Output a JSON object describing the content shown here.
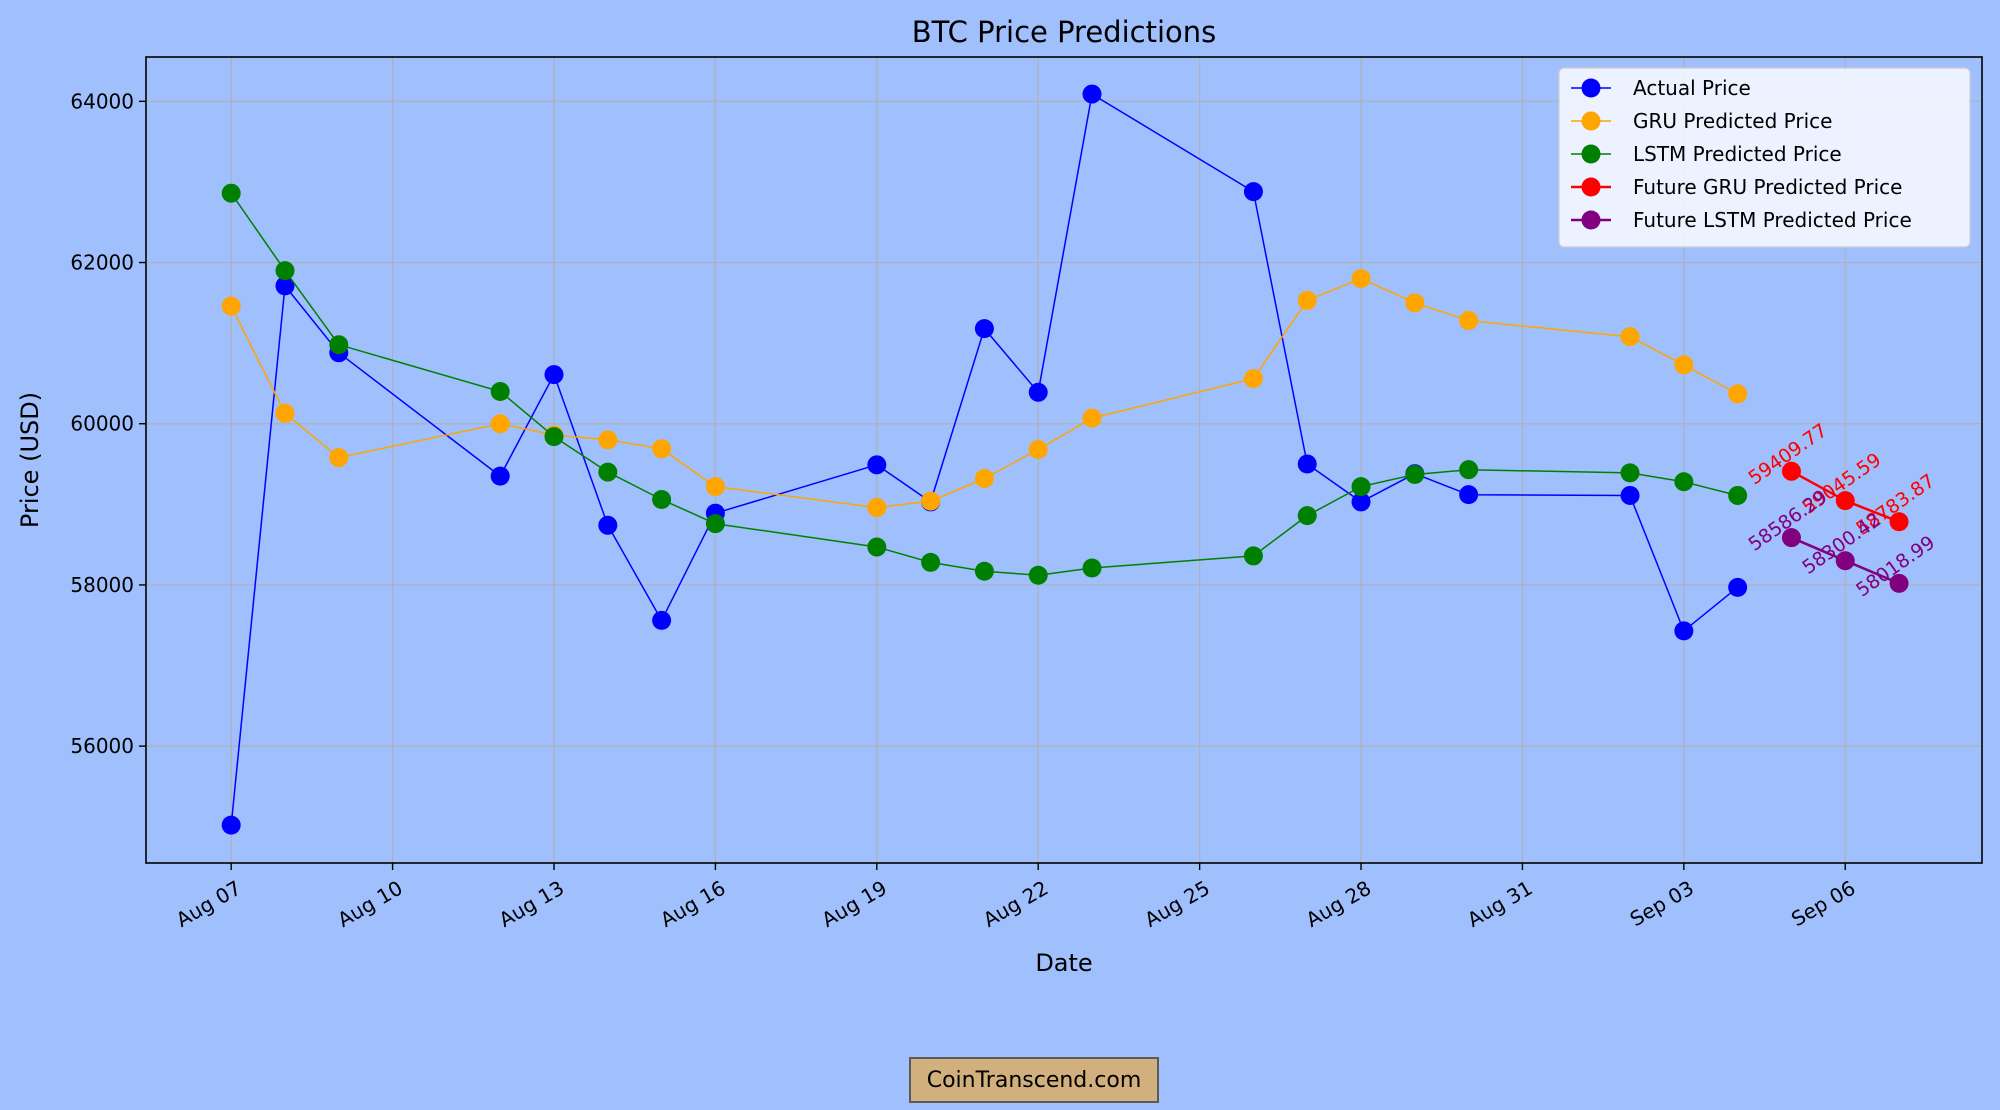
{
  "chart_data": {
    "type": "line",
    "title": "BTC Price Predictions",
    "xlabel": "Date",
    "ylabel": "Price (USD)",
    "x_axis_type": "date",
    "xlim": [
      "2024-08-05T10:00",
      "2024-09-08T13:00"
    ],
    "ylim": [
      54550,
      64550
    ],
    "x_ticks": [
      {
        "date": "2024-08-07",
        "label": "Aug 07"
      },
      {
        "date": "2024-08-10",
        "label": "Aug 10"
      },
      {
        "date": "2024-08-13",
        "label": "Aug 13"
      },
      {
        "date": "2024-08-16",
        "label": "Aug 16"
      },
      {
        "date": "2024-08-19",
        "label": "Aug 19"
      },
      {
        "date": "2024-08-22",
        "label": "Aug 22"
      },
      {
        "date": "2024-08-25",
        "label": "Aug 25"
      },
      {
        "date": "2024-08-28",
        "label": "Aug 28"
      },
      {
        "date": "2024-08-31",
        "label": "Aug 31"
      },
      {
        "date": "2024-09-03",
        "label": "Sep 03"
      },
      {
        "date": "2024-09-06",
        "label": "Sep 06"
      }
    ],
    "y_ticks": [
      56000,
      58000,
      60000,
      62000,
      64000
    ],
    "grid": true,
    "legend_position": "top-right",
    "series": [
      {
        "name": "Actual Price",
        "color": "#0000ff",
        "line_width": 1.5,
        "points": [
          {
            "x": "2024-08-07",
            "y": 55020
          },
          {
            "x": "2024-08-08",
            "y": 61710
          },
          {
            "x": "2024-08-09",
            "y": 60880
          },
          {
            "x": "2024-08-12",
            "y": 59350
          },
          {
            "x": "2024-08-13",
            "y": 60610
          },
          {
            "x": "2024-08-14",
            "y": 58740
          },
          {
            "x": "2024-08-15",
            "y": 57560
          },
          {
            "x": "2024-08-16",
            "y": 58890
          },
          {
            "x": "2024-08-19",
            "y": 59490
          },
          {
            "x": "2024-08-20",
            "y": 59030
          },
          {
            "x": "2024-08-21",
            "y": 61180
          },
          {
            "x": "2024-08-22",
            "y": 60390
          },
          {
            "x": "2024-08-23",
            "y": 64090
          },
          {
            "x": "2024-08-26",
            "y": 62880
          },
          {
            "x": "2024-08-27",
            "y": 59500
          },
          {
            "x": "2024-08-28",
            "y": 59030
          },
          {
            "x": "2024-08-29",
            "y": 59380
          },
          {
            "x": "2024-08-30",
            "y": 59120
          },
          {
            "x": "2024-09-02",
            "y": 59110
          },
          {
            "x": "2024-09-03",
            "y": 57430
          },
          {
            "x": "2024-09-04",
            "y": 57970
          }
        ]
      },
      {
        "name": "GRU Predicted Price",
        "color": "#ffa500",
        "line_width": 1.5,
        "points": [
          {
            "x": "2024-08-07",
            "y": 61460
          },
          {
            "x": "2024-08-08",
            "y": 60130
          },
          {
            "x": "2024-08-09",
            "y": 59580
          },
          {
            "x": "2024-08-12",
            "y": 60000
          },
          {
            "x": "2024-08-13",
            "y": 59860
          },
          {
            "x": "2024-08-14",
            "y": 59800
          },
          {
            "x": "2024-08-15",
            "y": 59690
          },
          {
            "x": "2024-08-16",
            "y": 59220
          },
          {
            "x": "2024-08-19",
            "y": 58960
          },
          {
            "x": "2024-08-20",
            "y": 59040
          },
          {
            "x": "2024-08-21",
            "y": 59320
          },
          {
            "x": "2024-08-22",
            "y": 59680
          },
          {
            "x": "2024-08-23",
            "y": 60070
          },
          {
            "x": "2024-08-26",
            "y": 60560
          },
          {
            "x": "2024-08-27",
            "y": 61530
          },
          {
            "x": "2024-08-28",
            "y": 61800
          },
          {
            "x": "2024-08-29",
            "y": 61500
          },
          {
            "x": "2024-08-30",
            "y": 61280
          },
          {
            "x": "2024-09-02",
            "y": 61080
          },
          {
            "x": "2024-09-03",
            "y": 60730
          },
          {
            "x": "2024-09-04",
            "y": 60370
          }
        ]
      },
      {
        "name": "LSTM Predicted Price",
        "color": "#008000",
        "line_width": 1.5,
        "points": [
          {
            "x": "2024-08-07",
            "y": 62860
          },
          {
            "x": "2024-08-08",
            "y": 61900
          },
          {
            "x": "2024-08-09",
            "y": 60980
          },
          {
            "x": "2024-08-12",
            "y": 60400
          },
          {
            "x": "2024-08-13",
            "y": 59840
          },
          {
            "x": "2024-08-14",
            "y": 59400
          },
          {
            "x": "2024-08-15",
            "y": 59060
          },
          {
            "x": "2024-08-16",
            "y": 58760
          },
          {
            "x": "2024-08-19",
            "y": 58470
          },
          {
            "x": "2024-08-20",
            "y": 58280
          },
          {
            "x": "2024-08-21",
            "y": 58170
          },
          {
            "x": "2024-08-22",
            "y": 58120
          },
          {
            "x": "2024-08-23",
            "y": 58210
          },
          {
            "x": "2024-08-26",
            "y": 58360
          },
          {
            "x": "2024-08-27",
            "y": 58860
          },
          {
            "x": "2024-08-28",
            "y": 59220
          },
          {
            "x": "2024-08-29",
            "y": 59370
          },
          {
            "x": "2024-08-30",
            "y": 59430
          },
          {
            "x": "2024-09-02",
            "y": 59390
          },
          {
            "x": "2024-09-03",
            "y": 59280
          },
          {
            "x": "2024-09-04",
            "y": 59110
          }
        ]
      },
      {
        "name": "Future GRU Predicted Price",
        "color": "#ff0000",
        "line_width": 2.5,
        "label_points": true,
        "points": [
          {
            "x": "2024-09-05",
            "y": 59409.77,
            "label": "59409.77"
          },
          {
            "x": "2024-09-06",
            "y": 59045.59,
            "label": "59045.59"
          },
          {
            "x": "2024-09-07",
            "y": 58783.87,
            "label": "58783.87"
          }
        ]
      },
      {
        "name": "Future LSTM Predicted Price",
        "color": "#800080",
        "line_width": 2.5,
        "label_points": true,
        "points": [
          {
            "x": "2024-09-05",
            "y": 58586.29,
            "label": "58586.29"
          },
          {
            "x": "2024-09-06",
            "y": 58300.42,
            "label": "58300.42"
          },
          {
            "x": "2024-09-07",
            "y": 58018.99,
            "label": "58018.99"
          }
        ]
      }
    ]
  },
  "watermark": "CoinTranscend.com"
}
